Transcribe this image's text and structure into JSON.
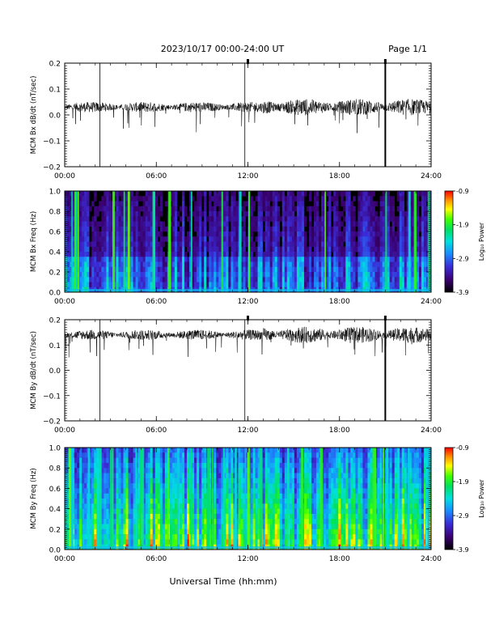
{
  "header": {
    "title": "2023/10/17  00:00-24:00 UT",
    "page": "Page 1/1"
  },
  "footer": {
    "xlabel": "Universal Time (hh:mm)"
  },
  "colorbar": {
    "label": "Log₁₀ Power",
    "ticks": [
      "-0.9",
      "-1.9",
      "-2.9",
      "-3.9"
    ],
    "range": [
      -3.9,
      -0.9
    ]
  },
  "chart_data": [
    {
      "type": "line",
      "ylabel": "MCM Bx dB/dt (nT/sec)",
      "x_ticks": [
        "00:00",
        "06:00",
        "12:00",
        "18:00",
        "24:00"
      ],
      "xlim": [
        0,
        24
      ],
      "ylim": [
        -0.2,
        0.2
      ],
      "y_ticks": [
        "0.2",
        "0.1",
        "0.0",
        "−0.1",
        "−0.2"
      ],
      "baseline": 0.03,
      "spikes_hours": [
        2.3,
        11.8,
        21.0
      ],
      "top_markers_hours": [
        12.0,
        21.0
      ]
    },
    {
      "type": "heatmap",
      "ylabel": "MCM Bx Freq (Hz)",
      "x_ticks": [
        "00:00",
        "06:00",
        "12:00",
        "18:00",
        "24:00"
      ],
      "xlim": [
        0,
        24
      ],
      "ylim": [
        0.0,
        1.0
      ],
      "y_ticks": [
        "1.0",
        "0.8",
        "0.6",
        "0.4",
        "0.2",
        "0.0"
      ],
      "zlim": [
        -3.9,
        -0.9
      ]
    },
    {
      "type": "line",
      "ylabel": "MCM By dB/dt (nT/sec)",
      "x_ticks": [
        "00:00",
        "06:00",
        "12:00",
        "18:00",
        "24:00"
      ],
      "xlim": [
        0,
        24
      ],
      "ylim": [
        -0.2,
        0.2
      ],
      "y_ticks": [
        "0.2",
        "0.1",
        "0.0",
        "−0.1",
        "−0.2"
      ],
      "baseline": 0.14,
      "spikes_hours": [
        2.3,
        11.8,
        21.0
      ],
      "top_markers_hours": [
        12.0,
        21.0
      ]
    },
    {
      "type": "heatmap",
      "ylabel": "MCM By Freq (Hz)",
      "x_ticks": [
        "00:00",
        "06:00",
        "12:00",
        "18:00",
        "24:00"
      ],
      "xlim": [
        0,
        24
      ],
      "ylim": [
        0.0,
        1.0
      ],
      "y_ticks": [
        "1.0",
        "0.8",
        "0.6",
        "0.4",
        "0.2",
        "0.0"
      ],
      "zlim": [
        -3.9,
        -0.9
      ]
    }
  ]
}
